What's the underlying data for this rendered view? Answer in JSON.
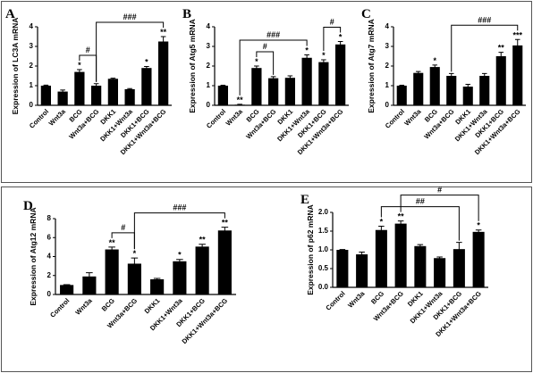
{
  "chart_data": [
    {
      "type": "bar",
      "panel": "A",
      "ylabel": "Expression of LC3A mRNA",
      "categories": [
        "Control",
        "Wnt3a",
        "BCG",
        "Wnt3a+BCG",
        "DKK1",
        "DKK1+Wnt3a",
        "DKK1+BCG",
        "DKK1+Wnt3a+BCG"
      ],
      "values": [
        1.0,
        0.7,
        1.7,
        1.0,
        1.35,
        0.82,
        1.9,
        3.25
      ],
      "errors": [
        0.03,
        0.08,
        0.12,
        0.1,
        0.03,
        0.03,
        0.08,
        0.25
      ],
      "stars": [
        null,
        null,
        "*",
        null,
        null,
        null,
        "*",
        "**"
      ],
      "brackets": [
        {
          "between": [
            "BCG",
            "Wnt3a+BCG"
          ],
          "label": "#"
        },
        {
          "between": [
            "Wnt3a+BCG",
            "DKK1+Wnt3a+BCG"
          ],
          "label": "###"
        }
      ],
      "color": "#000000",
      "ylim": [
        0,
        4
      ],
      "yticks": [
        0,
        1,
        2,
        3,
        4
      ]
    },
    {
      "type": "bar",
      "panel": "B",
      "ylabel": "Expression of Atg5 mRNA",
      "categories": [
        "Control",
        "Wnt3a",
        "BCG",
        "Wnt3a+BCG",
        "DKK1",
        "DKK1+Wnt3a",
        "DKK1+BCG",
        "DKK1+Wnt3a+BCG"
      ],
      "values": [
        1.0,
        0.03,
        1.9,
        1.38,
        1.4,
        2.42,
        2.2,
        3.1
      ],
      "errors": [
        0.02,
        0.02,
        0.1,
        0.08,
        0.1,
        0.15,
        0.12,
        0.15
      ],
      "stars": [
        null,
        "**",
        "*",
        null,
        null,
        "*",
        "*",
        "*"
      ],
      "brackets": [
        {
          "between": [
            "BCG",
            "Wnt3a+BCG"
          ],
          "label": "#"
        },
        {
          "between": [
            "Wnt3a",
            "DKK1+Wnt3a"
          ],
          "label": "###"
        },
        {
          "between": [
            "DKK1+BCG",
            "DKK1+Wnt3a+BCG"
          ],
          "label": "#"
        }
      ],
      "color": "#000000",
      "ylim": [
        0,
        4
      ],
      "yticks": [
        0,
        1,
        2,
        3,
        4
      ]
    },
    {
      "type": "bar",
      "panel": "C",
      "ylabel": "Expression of Atg7 mRNA",
      "categories": [
        "Control",
        "Wnt3a",
        "BCG",
        "Wnt3a+BCG",
        "DKK1",
        "DKK1+Wnt3a",
        "DKK1+BCG",
        "DKK1+Wnt3a+BCG"
      ],
      "values": [
        1.0,
        1.65,
        1.95,
        1.5,
        0.95,
        1.5,
        2.5,
        3.05
      ],
      "errors": [
        0.02,
        0.07,
        0.1,
        0.12,
        0.12,
        0.12,
        0.2,
        0.3
      ],
      "stars": [
        null,
        null,
        "*",
        null,
        null,
        null,
        "**",
        "***"
      ],
      "brackets": [
        {
          "between": [
            "Wnt3a+BCG",
            "DKK1+Wnt3a+BCG"
          ],
          "label": "###"
        }
      ],
      "color": "#000000",
      "ylim": [
        0,
        4
      ],
      "yticks": [
        0,
        1,
        2,
        3,
        4
      ]
    },
    {
      "type": "bar",
      "panel": "D",
      "ylabel": "Expression of Atg12 mRNA",
      "categories": [
        "Control",
        "Wnt3a",
        "BCG",
        "Wnt3a+BCG",
        "DKK1",
        "DKK1+Wnt3a",
        "DKK1+BCG",
        "DKK1+Wnt3a+BCG"
      ],
      "values": [
        1.0,
        1.9,
        4.75,
        3.25,
        1.6,
        3.5,
        5.05,
        6.75
      ],
      "errors": [
        0.03,
        0.4,
        0.25,
        0.6,
        0.1,
        0.2,
        0.25,
        0.35
      ],
      "stars": [
        null,
        null,
        "**",
        "*",
        null,
        "*",
        "**",
        "**"
      ],
      "brackets": [
        {
          "between": [
            "BCG",
            "Wnt3a+BCG"
          ],
          "label": "#"
        },
        {
          "between": [
            "Wnt3a+BCG",
            "DKK1+Wnt3a+BCG"
          ],
          "label": "###"
        }
      ],
      "color": "#000000",
      "ylim": [
        0,
        8
      ],
      "yticks": [
        0,
        2,
        4,
        6,
        8
      ]
    },
    {
      "type": "bar",
      "panel": "E",
      "ylabel": "Expression of p62 mRNA",
      "categories": [
        "Control",
        "Wnt3a",
        "BCG",
        "Wnt3a+BCG",
        "DKK1",
        "DKK1+Wnt3a",
        "DKK1+BCG",
        "DKK1+Wnt3a+BCG"
      ],
      "values": [
        1.0,
        0.88,
        1.53,
        1.7,
        1.1,
        0.78,
        1.02,
        1.48
      ],
      "errors": [
        0.01,
        0.06,
        0.1,
        0.07,
        0.04,
        0.03,
        0.18,
        0.05
      ],
      "stars": [
        null,
        null,
        "*",
        "**",
        null,
        null,
        null,
        "*"
      ],
      "brackets": [
        {
          "between": [
            "BCG",
            "DKK1+BCG"
          ],
          "label": "##"
        },
        {
          "between": [
            "Wnt3a+BCG",
            "DKK1+Wnt3a+BCG"
          ],
          "label": "#"
        }
      ],
      "color": "#000000",
      "ylim": [
        0,
        2
      ],
      "yticks": [
        {
          "value": 0,
          "label": "0.0"
        },
        0.5,
        {
          "value": 1,
          "label": "1.0"
        },
        1.5,
        {
          "value": 2,
          "label": "2.0"
        }
      ]
    }
  ]
}
